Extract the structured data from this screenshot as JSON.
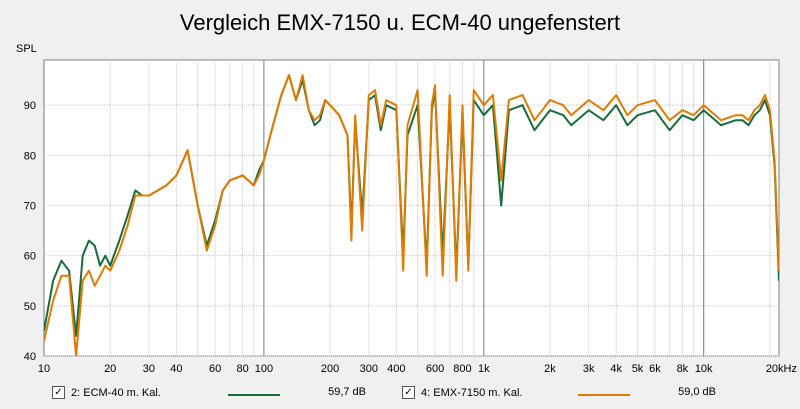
{
  "chart_data": {
    "type": "line",
    "title": "Vergleich EMX-7150 u. ECM-40 ungefenstert",
    "ylabel": "SPL",
    "xlabel": "",
    "x_scale": "log",
    "xlim": [
      10,
      22000
    ],
    "ylim": [
      40,
      99
    ],
    "x_ticks": [
      10,
      20,
      30,
      40,
      50,
      60,
      80,
      100,
      200,
      300,
      400,
      600,
      800,
      1000,
      2000,
      3000,
      4000,
      5000,
      6000,
      8000,
      10000,
      20000
    ],
    "x_tick_labels": [
      "10",
      "20",
      "30",
      "40",
      "",
      "60",
      "80",
      "100",
      "200",
      "300",
      "400",
      "600",
      "800",
      "1k",
      "2k",
      "3k",
      "4k",
      "5k",
      "6k",
      "8k",
      "10k",
      "20kHz"
    ],
    "y_ticks": [
      40,
      50,
      60,
      70,
      80,
      90
    ],
    "y_tick_labels": [
      "40",
      "50",
      "60",
      "70",
      "80",
      "90"
    ],
    "grid": true,
    "series": [
      {
        "name": "2: ECM-40 m. Kal.",
        "color": "#1a6b3c",
        "value_label": "59,7 dB",
        "x": [
          10,
          11,
          12,
          13,
          14,
          15,
          16,
          17,
          18,
          19,
          20,
          22,
          24,
          26,
          28,
          30,
          33,
          36,
          40,
          45,
          50,
          55,
          60,
          65,
          70,
          80,
          90,
          95,
          100,
          110,
          120,
          130,
          140,
          150,
          160,
          170,
          180,
          190,
          200,
          220,
          240,
          250,
          260,
          280,
          300,
          320,
          340,
          360,
          400,
          430,
          450,
          500,
          550,
          580,
          600,
          650,
          700,
          750,
          800,
          850,
          900,
          1000,
          1100,
          1200,
          1300,
          1500,
          1700,
          2000,
          2300,
          2500,
          3000,
          3500,
          4000,
          4500,
          5000,
          6000,
          7000,
          8000,
          9000,
          10000,
          12000,
          14000,
          15000,
          16000,
          17000,
          18000,
          19000,
          20000,
          21000,
          22000
        ],
        "y": [
          45,
          55,
          59,
          57,
          44,
          60,
          63,
          62,
          58,
          60,
          58,
          63,
          68,
          73,
          72,
          72,
          73,
          74,
          76,
          81,
          70,
          62,
          67,
          73,
          75,
          76,
          74,
          77,
          79,
          86,
          92,
          96,
          91,
          95,
          89,
          86,
          87,
          91,
          90,
          88,
          84,
          65,
          87,
          68,
          91,
          92,
          85,
          90,
          89,
          60,
          84,
          90,
          58,
          89,
          93,
          60,
          90,
          57,
          88,
          58,
          91,
          88,
          90,
          70,
          89,
          90,
          85,
          89,
          88,
          86,
          89,
          87,
          90,
          86,
          88,
          89,
          85,
          88,
          87,
          89,
          86,
          87,
          87,
          86,
          88,
          89,
          91,
          88,
          78,
          55
        ]
      },
      {
        "name": "4: EMX-7150 m. Kal.",
        "color": "#e07b00",
        "value_label": "59,0 dB",
        "x": [
          10,
          11,
          12,
          13,
          14,
          15,
          16,
          17,
          18,
          19,
          20,
          22,
          24,
          26,
          28,
          30,
          33,
          36,
          40,
          45,
          50,
          55,
          60,
          65,
          70,
          80,
          90,
          95,
          100,
          110,
          120,
          130,
          140,
          150,
          160,
          170,
          180,
          190,
          200,
          220,
          240,
          250,
          260,
          280,
          300,
          320,
          340,
          360,
          400,
          430,
          450,
          500,
          550,
          580,
          600,
          650,
          700,
          750,
          800,
          850,
          900,
          1000,
          1100,
          1200,
          1300,
          1500,
          1700,
          2000,
          2300,
          2500,
          3000,
          3500,
          4000,
          4500,
          5000,
          6000,
          7000,
          8000,
          9000,
          10000,
          12000,
          14000,
          15000,
          16000,
          17000,
          18000,
          19000,
          20000,
          21000,
          22000
        ],
        "y": [
          43,
          51,
          56,
          56,
          40,
          55,
          57,
          54,
          56,
          58,
          57,
          61,
          66,
          72,
          72,
          72,
          73,
          74,
          76,
          81,
          70,
          61,
          66,
          73,
          75,
          76,
          74,
          76,
          79,
          86,
          92,
          96,
          91,
          96,
          89,
          87,
          88,
          91,
          90,
          88,
          84,
          63,
          88,
          65,
          92,
          93,
          86,
          91,
          90,
          57,
          86,
          93,
          56,
          90,
          94,
          56,
          92,
          55,
          90,
          57,
          93,
          90,
          92,
          75,
          91,
          92,
          87,
          91,
          90,
          88,
          91,
          89,
          92,
          88,
          90,
          91,
          87,
          89,
          88,
          90,
          87,
          88,
          88,
          87,
          89,
          90,
          92,
          89,
          79,
          57
        ]
      }
    ]
  },
  "legend": {
    "items": [
      {
        "checkbox": "✓",
        "label": "2: ECM-40 m. Kal.",
        "value": "59,7 dB"
      },
      {
        "checkbox": "✓",
        "label": "4: EMX-7150 m. Kal.",
        "value": "59,0 dB"
      }
    ]
  }
}
